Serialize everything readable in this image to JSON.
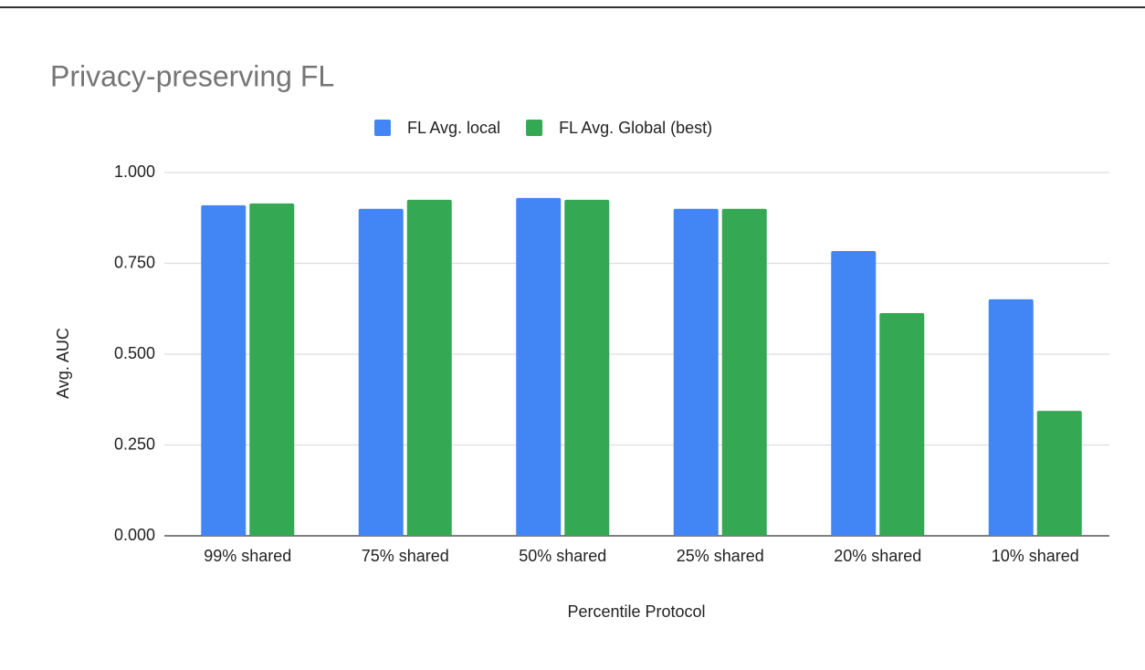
{
  "chart_data": {
    "type": "bar",
    "title": "Privacy-preserving FL",
    "x_label": "Percentile Protocol",
    "y_label": "Avg. AUC",
    "categories": [
      "99% shared",
      "75% shared",
      "50% shared",
      "25% shared",
      "20% shared",
      "10% shared"
    ],
    "series": [
      {
        "name": "FL Avg. local",
        "color": "#4285f4",
        "values": [
          0.91,
          0.9,
          0.93,
          0.9,
          0.784,
          0.651
        ]
      },
      {
        "name": "FL Avg. Global (best)",
        "color": "#34a853",
        "values": [
          0.915,
          0.925,
          0.925,
          0.9,
          0.613,
          0.344
        ]
      }
    ],
    "ylim": [
      0,
      1
    ],
    "yticks": [
      {
        "value": 0,
        "label": "0.000"
      },
      {
        "value": 0.25,
        "label": "0.250"
      },
      {
        "value": 0.5,
        "label": "0.500"
      },
      {
        "value": 0.75,
        "label": "0.750"
      },
      {
        "value": 1,
        "label": "1.000"
      }
    ],
    "grid": true,
    "legend": "top"
  }
}
